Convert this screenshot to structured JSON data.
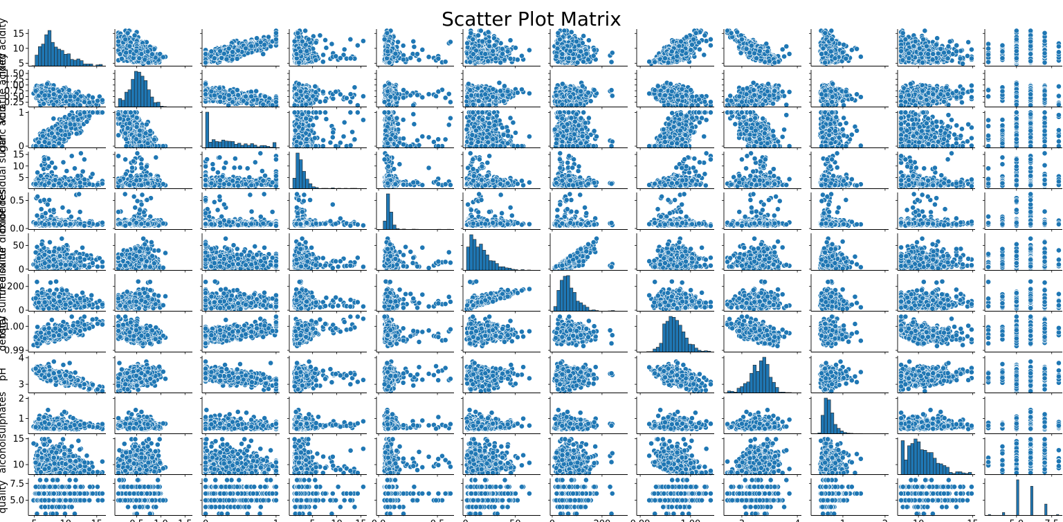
{
  "chart_data": {
    "type": "scatter",
    "title": "Scatter Plot Matrix",
    "variables": [
      {
        "name": "fixed acidity",
        "label": "fixed acidity",
        "range": [
          4.6,
          15.9
        ],
        "yticks": [
          5,
          10,
          15
        ],
        "yticklabels": [
          "5",
          "10",
          "15"
        ],
        "xticks": [
          5,
          10,
          15
        ],
        "xticklabels": [
          "5",
          "10",
          "15"
        ]
      },
      {
        "name": "volatile acidity",
        "label": "volatile acidity",
        "range": [
          0.12,
          1.58
        ],
        "yticks": [
          0.25,
          0.5,
          0.75,
          1.0,
          1.25,
          1.5
        ],
        "yticklabels": [
          "0.25",
          "0.50",
          "0.75",
          "1.00",
          "1.25",
          "1.50"
        ],
        "xticks": [
          0.5,
          1.0,
          1.5
        ],
        "xticklabels": [
          "0.5",
          "1.0",
          "1.5"
        ]
      },
      {
        "name": "citric acid",
        "label": "citric acid",
        "range": [
          0.0,
          1.0
        ],
        "yticks": [
          0,
          1
        ],
        "yticklabels": [
          "0",
          "1"
        ],
        "xticks": [
          0,
          1
        ],
        "xticklabels": [
          "0",
          "1"
        ]
      },
      {
        "name": "residual sugar",
        "label": "residual sugar",
        "range": [
          0.9,
          15.5
        ],
        "yticks": [
          5,
          10,
          15
        ],
        "yticklabels": [
          "5",
          "10",
          "15"
        ],
        "xticks": [
          5,
          10,
          15
        ],
        "xticklabels": [
          "5",
          "10",
          "15"
        ]
      },
      {
        "name": "chlorides",
        "label": "chlorides",
        "range": [
          0.012,
          0.611
        ],
        "yticks": [
          0.0,
          0.5
        ],
        "yticklabels": [
          "0.0",
          "0.5"
        ],
        "xticks": [
          0.0,
          0.5
        ],
        "xticklabels": [
          "0.0",
          "0.5"
        ]
      },
      {
        "name": "free sulfur dioxide",
        "label": "free sulfur dioxide",
        "range": [
          1,
          72
        ],
        "yticks": [
          0,
          50
        ],
        "yticklabels": [
          "0",
          "50"
        ],
        "xticks": [
          0,
          50
        ],
        "xticklabels": [
          "0",
          "50"
        ]
      },
      {
        "name": "total sulfur dioxide",
        "label": "total sulfur dioxide",
        "range": [
          6,
          289
        ],
        "yticks": [
          0,
          200
        ],
        "yticklabels": [
          "0",
          "200"
        ],
        "xticks": [
          0,
          200
        ],
        "xticklabels": [
          "0",
          "200"
        ]
      },
      {
        "name": "density",
        "label": "density",
        "range": [
          0.99,
          1.004
        ],
        "yticks": [
          0.99,
          1.0
        ],
        "yticklabels": [
          "0.99",
          "1.00"
        ],
        "xticks": [
          0.99,
          1.0
        ],
        "xticklabels": [
          "0.99",
          "1.00"
        ]
      },
      {
        "name": "pH",
        "label": "pH",
        "range": [
          2.74,
          4.01
        ],
        "yticks": [
          3,
          4
        ],
        "yticklabels": [
          "3",
          "4"
        ],
        "xticks": [
          3,
          4
        ],
        "xticklabels": [
          "3",
          "4"
        ]
      },
      {
        "name": "sulphates",
        "label": "sulphates",
        "range": [
          0.33,
          2.0
        ],
        "yticks": [
          1,
          2
        ],
        "yticklabels": [
          "1",
          "2"
        ],
        "xticks": [
          1,
          2
        ],
        "xticklabels": [
          "1",
          "2"
        ]
      },
      {
        "name": "alcohol",
        "label": "alcohol",
        "range": [
          8.4,
          14.9
        ],
        "yticks": [
          10,
          15
        ],
        "yticklabels": [
          "10",
          "15"
        ],
        "xticks": [
          10,
          15
        ],
        "xticklabels": [
          "10",
          "15"
        ]
      },
      {
        "name": "quality",
        "label": "quality",
        "range": [
          3,
          8
        ],
        "yticks": [
          5.0,
          7.5
        ],
        "yticklabels": [
          "5.0",
          "7.5"
        ],
        "xticks": [
          5.0,
          7.5
        ],
        "xticklabels": [
          "5.0",
          "7.5"
        ],
        "discrete": true
      }
    ],
    "quality_counts": {
      "3": 10,
      "4": 53,
      "5": 681,
      "6": 638,
      "7": 199,
      "8": 18
    },
    "diagonal": "histogram",
    "off_diagonal": "scatter",
    "grid": false,
    "legend": "none",
    "colors": {
      "marker": "#1f77b4",
      "marker_edge": "#ffffff",
      "hist_fill": "#1f77b4",
      "hist_edge": "#222222",
      "axis": "#000000"
    }
  }
}
